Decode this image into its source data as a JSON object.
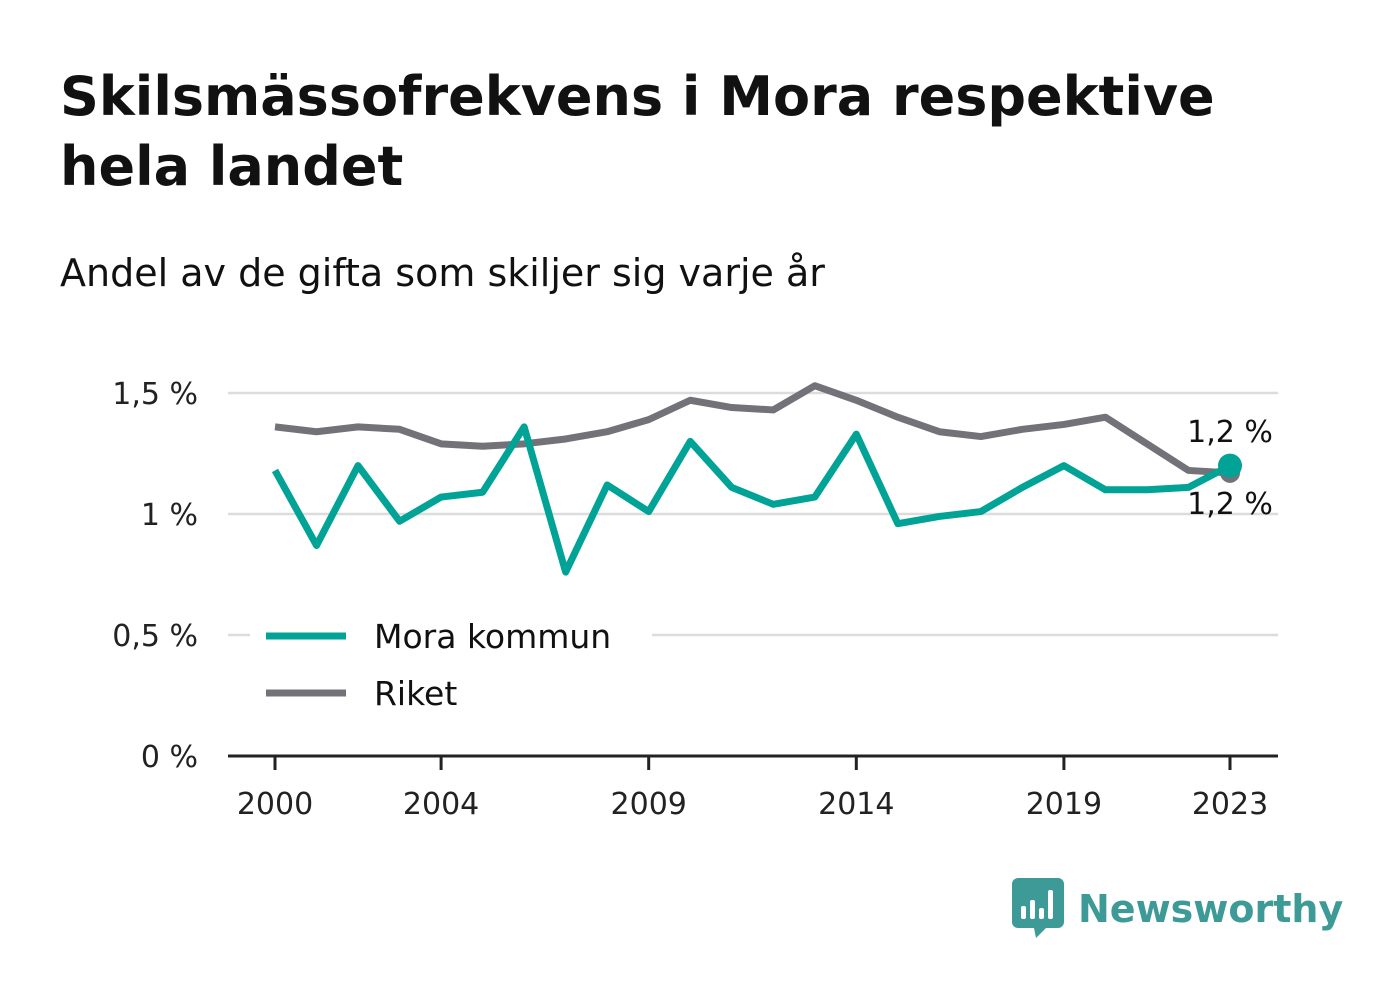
{
  "title": "Skilsmässofrekvens i Mora respektive hela landet",
  "subtitle": "Andel av de gifta som skiljer sig varje år",
  "brand": {
    "name": "Newsworthy",
    "icon": "bar-chart-speech-bubble-icon",
    "color": "#3d9a97"
  },
  "chart_data": {
    "type": "line",
    "x": [
      2000,
      2001,
      2002,
      2003,
      2004,
      2005,
      2006,
      2007,
      2008,
      2009,
      2010,
      2011,
      2012,
      2013,
      2014,
      2015,
      2016,
      2017,
      2018,
      2019,
      2020,
      2021,
      2022,
      2023
    ],
    "series": [
      {
        "name": "Mora kommun",
        "color": "#00a396",
        "values": [
          1.18,
          0.87,
          1.2,
          0.97,
          1.07,
          1.09,
          1.36,
          0.76,
          1.12,
          1.01,
          1.3,
          1.11,
          1.04,
          1.07,
          1.33,
          0.96,
          0.99,
          1.01,
          1.11,
          1.2,
          1.1,
          1.1,
          1.11,
          1.2
        ],
        "end_label": "1,2 %"
      },
      {
        "name": "Riket",
        "color": "#737278",
        "values": [
          1.36,
          1.34,
          1.36,
          1.35,
          1.29,
          1.28,
          1.29,
          1.31,
          1.34,
          1.39,
          1.47,
          1.44,
          1.43,
          1.53,
          1.47,
          1.4,
          1.34,
          1.32,
          1.35,
          1.37,
          1.4,
          1.29,
          1.18,
          1.17
        ],
        "end_label": "1,2 %"
      }
    ],
    "x_ticks": [
      2000,
      2004,
      2009,
      2014,
      2019,
      2023
    ],
    "x_tick_labels": [
      "2000",
      "2004",
      "2009",
      "2014",
      "2019",
      "2023"
    ],
    "y_ticks": [
      0,
      0.5,
      1,
      1.5
    ],
    "y_tick_labels": [
      "0 %",
      "0,5 %",
      "1 %",
      "1,5 %"
    ],
    "xlim": [
      2000,
      2023
    ],
    "ylim": [
      0,
      1.5
    ],
    "grid": true,
    "legend_position": "bottom-left"
  }
}
